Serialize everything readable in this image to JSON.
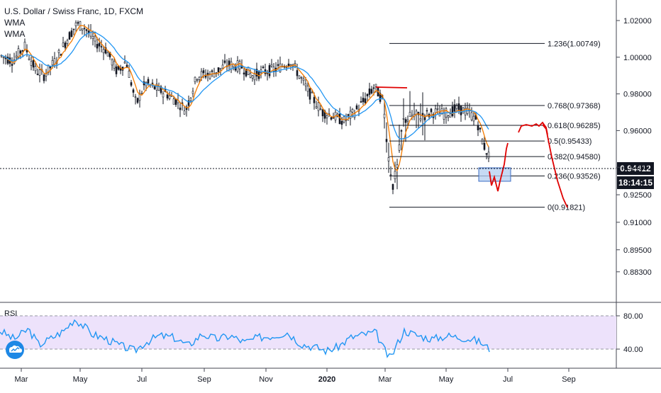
{
  "header": {
    "title": "U.S. Dollar / Swiss Franc, 1D, FXCM",
    "indicators": [
      "WMA",
      "WMA"
    ]
  },
  "rsi_panel": {
    "label": "RSI",
    "levels": [
      "80.00",
      "40.00"
    ]
  },
  "price_axis": {
    "ticks": [
      "1.02000",
      "1.00000",
      "0.98000",
      "0.96000",
      "0.94000",
      "0.92500",
      "0.91000",
      "0.89500",
      "0.88300"
    ],
    "current_price": "0.94412",
    "countdown": "18:14:15"
  },
  "time_axis": {
    "ticks": [
      "Mar",
      "May",
      "Jul",
      "Sep",
      "Nov",
      "2020",
      "Mar",
      "May",
      "Jul",
      "Sep"
    ]
  },
  "fib_levels": [
    {
      "label": "1.236(1.00749)",
      "value": 1.00749
    },
    {
      "label": "0.768(0.97368)",
      "value": 0.97368
    },
    {
      "label": "0.618(0.96285)",
      "value": 0.96285
    },
    {
      "label": "0.5(0.95433)",
      "value": 0.95433
    },
    {
      "label": "0.382(0.94580)",
      "value": 0.9458
    },
    {
      "label": "0.236(0.93526)",
      "value": 0.93526
    },
    {
      "label": "0(0.91821)",
      "value": 0.91821
    }
  ],
  "colors": {
    "candle": "#131722",
    "wma_fast": "#f57c00",
    "wma_slow": "#2196f3",
    "rsi_line": "#2196f3",
    "rsi_band": "#ede2fb",
    "annotation": "#e00000",
    "box_fill": "#b3cdf0",
    "box_stroke": "#3f6fc4"
  },
  "chart_data": {
    "type": "line",
    "title": "U.S. Dollar / Swiss Franc, 1D, FXCM",
    "series": [
      {
        "name": "WMA",
        "x": [
          "2019-02",
          "2019-03",
          "2019-04",
          "2019-05",
          "2019-06",
          "2019-07",
          "2019-08",
          "2019-09",
          "2019-10",
          "2019-11",
          "2019-12",
          "2020-01",
          "2020-02",
          "2020-03",
          "2020-04",
          "2020-05",
          "2020-06"
        ],
        "values": [
          1.0,
          1.005,
          1.01,
          1.018,
          0.997,
          0.985,
          0.976,
          0.989,
          0.994,
          0.995,
          0.986,
          0.97,
          0.975,
          0.947,
          0.965,
          0.966,
          0.95
        ]
      },
      {
        "name": "WMA",
        "x": [
          "2019-02",
          "2019-03",
          "2019-04",
          "2019-05",
          "2019-06",
          "2019-07",
          "2019-08",
          "2019-09",
          "2019-10",
          "2019-11",
          "2019-12",
          "2020-01",
          "2020-02",
          "2020-03",
          "2020-04",
          "2020-05",
          "2020-06"
        ],
        "values": [
          0.998,
          1.004,
          1.007,
          1.015,
          1.002,
          0.99,
          0.98,
          0.985,
          0.993,
          0.994,
          0.988,
          0.975,
          0.971,
          0.958,
          0.961,
          0.966,
          0.958
        ]
      },
      {
        "name": "RSI",
        "x": [
          "2019-02",
          "2019-03",
          "2019-04",
          "2019-05",
          "2019-06",
          "2019-07",
          "2019-08",
          "2019-09",
          "2019-10",
          "2019-11",
          "2019-12",
          "2020-01",
          "2020-02",
          "2020-03",
          "2020-04",
          "2020-05",
          "2020-06"
        ],
        "values": [
          62,
          48,
          58,
          76,
          38,
          45,
          42,
          58,
          55,
          52,
          48,
          40,
          55,
          28,
          62,
          55,
          40
        ]
      }
    ],
    "ylim": [
      0.883,
      1.028
    ],
    "last_price": 0.94412
  }
}
